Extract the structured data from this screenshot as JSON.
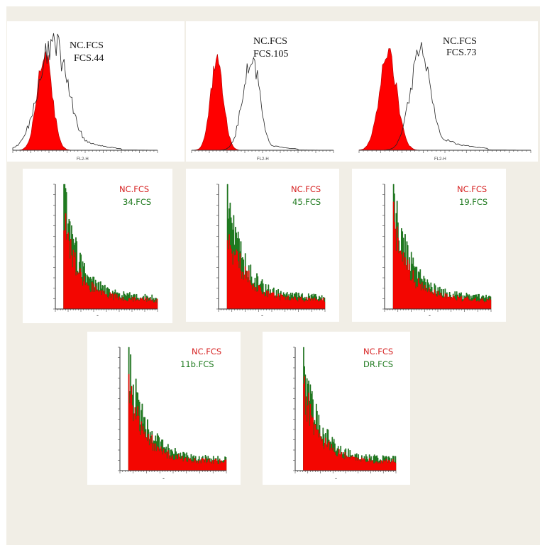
{
  "colors": {
    "page_bg": "#f1eee6",
    "panel_bg": "#ffffff",
    "control": "#ff0000",
    "control_text": "#d62020",
    "sample_green": "#1f7a1f",
    "sample_outline": "#222222",
    "label_black": "#111111"
  },
  "chart_data": [
    {
      "type": "area",
      "style": "overlay-outline",
      "labels": [
        "NC.FCS",
        "FCS.44"
      ],
      "axis_label": "FL2-H",
      "control": {
        "name": "NC.FCS",
        "peak": 0.22,
        "width": 0.05,
        "height": 0.92
      },
      "sample": {
        "name": "FCS.44",
        "peak": 0.28,
        "width": 0.1,
        "height": 1.0,
        "tail": 0.45
      }
    },
    {
      "type": "area",
      "style": "overlay-outline",
      "labels": [
        "NC.FCS",
        "FCS.105"
      ],
      "axis_label": "FL2-H",
      "control": {
        "name": "NC.FCS",
        "peak": 0.18,
        "width": 0.045,
        "height": 0.82
      },
      "sample": {
        "name": "FCS.105",
        "peak": 0.42,
        "width": 0.06,
        "height": 0.85,
        "tail": 0.15
      }
    },
    {
      "type": "area",
      "style": "overlay-outline",
      "labels": [
        "NC.FCS",
        "FCS.73"
      ],
      "axis_label": "FL2-H",
      "control": {
        "name": "NC.FCS",
        "peak": 0.17,
        "width": 0.05,
        "height": 0.88
      },
      "sample": {
        "name": "FCS.73",
        "peak": 0.36,
        "width": 0.06,
        "height": 0.92,
        "tail": 0.3
      }
    },
    {
      "type": "area",
      "style": "overlay-filled",
      "labels": [
        "NC.FCS",
        "34.FCS"
      ],
      "control": {
        "name": "NC.FCS"
      },
      "sample": {
        "name": "34.FCS"
      }
    },
    {
      "type": "area",
      "style": "overlay-filled",
      "labels": [
        "NC.FCS",
        "45.FCS"
      ],
      "control": {
        "name": "NC.FCS"
      },
      "sample": {
        "name": "45.FCS"
      }
    },
    {
      "type": "area",
      "style": "overlay-filled",
      "labels": [
        "NC.FCS",
        "19.FCS"
      ],
      "control": {
        "name": "NC.FCS"
      },
      "sample": {
        "name": "19.FCS"
      }
    },
    {
      "type": "area",
      "style": "overlay-filled",
      "labels": [
        "NC.FCS",
        "11b.FCS"
      ],
      "control": {
        "name": "NC.FCS"
      },
      "sample": {
        "name": "11b.FCS"
      }
    },
    {
      "type": "area",
      "style": "overlay-filled",
      "labels": [
        "NC.FCS",
        "DR.FCS"
      ],
      "control": {
        "name": "NC.FCS"
      },
      "sample": {
        "name": "DR.FCS"
      }
    }
  ]
}
